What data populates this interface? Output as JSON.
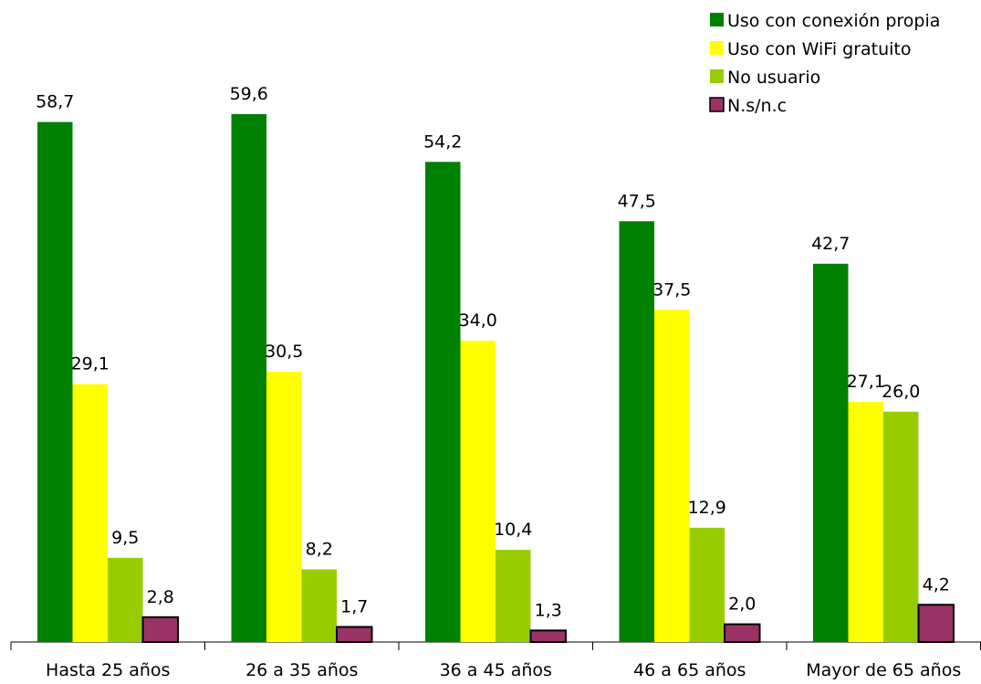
{
  "chart_data": {
    "type": "bar",
    "title": "",
    "xlabel": "",
    "ylabel": "",
    "ylim": [
      0,
      60
    ],
    "grid": false,
    "legend_position": "top-right",
    "categories": [
      "Hasta 25 años",
      "26 a 35 años",
      "36 a 45 años",
      "46 a 65 años",
      "Mayor de 65 años"
    ],
    "series": [
      {
        "name": "Uso con conexión propia",
        "color": "#008000",
        "values": [
          58.7,
          59.6,
          54.2,
          47.5,
          42.7
        ],
        "labels": [
          "58,7",
          "59,6",
          "54,2",
          "47,5",
          "42,7"
        ]
      },
      {
        "name": "Uso con WiFi gratuito",
        "color": "#FFFF00",
        "values": [
          29.1,
          30.5,
          34.0,
          37.5,
          27.1
        ],
        "labels": [
          "29,1",
          "30,5",
          "34,0",
          "37,5",
          "27,1"
        ]
      },
      {
        "name": "No usuario",
        "color": "#99CC00",
        "values": [
          9.5,
          8.2,
          10.4,
          12.9,
          26.0
        ],
        "labels": [
          "9,5",
          "8,2",
          "10,4",
          "12,9",
          "26,0"
        ]
      },
      {
        "name": "N.s/n.c",
        "color": "#993366",
        "values": [
          2.8,
          1.7,
          1.3,
          2.0,
          4.2
        ],
        "labels": [
          "2,8",
          "1,7",
          "1,3",
          "2,0",
          "4,2"
        ]
      }
    ]
  }
}
